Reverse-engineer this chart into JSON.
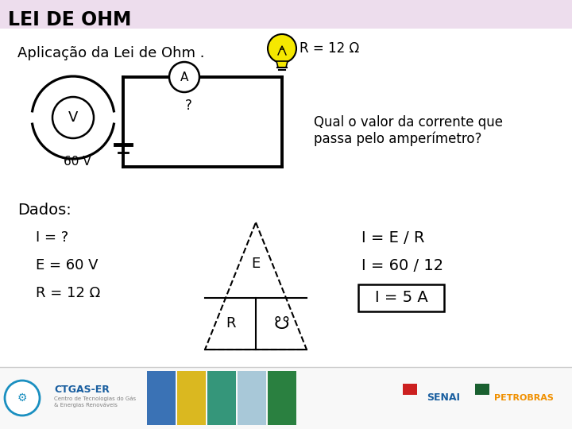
{
  "title": "LEI DE OHM",
  "subtitle": "Aplicação da Lei de Ohm .",
  "question": "Qual o valor da corrente que\npassa pelo amperímetro?",
  "r_label": "R = 12 Ω",
  "sixty_v": "60 V",
  "dados_title": "Dados:",
  "dado1": "I = ?",
  "dado2": "E = 60 V",
  "dado3": "R = 12 Ω",
  "formula1": "I = E / R",
  "formula2": "I = 60 / 12",
  "formula3": "I = 5 A",
  "bg_color": "#ffffff",
  "header_bg": "#eddded",
  "text_color": "#000000",
  "footer_bg": "#f5f5f5",
  "bulb_color": "#f5e800",
  "footer_colors": [
    "#3a72b5",
    "#dab820",
    "#35967a",
    "#a8c8d8",
    "#2a8040"
  ],
  "ctgas_color": "#1a5fa0",
  "senai_color": "#1a5fa0",
  "petro_color": "#f09000"
}
